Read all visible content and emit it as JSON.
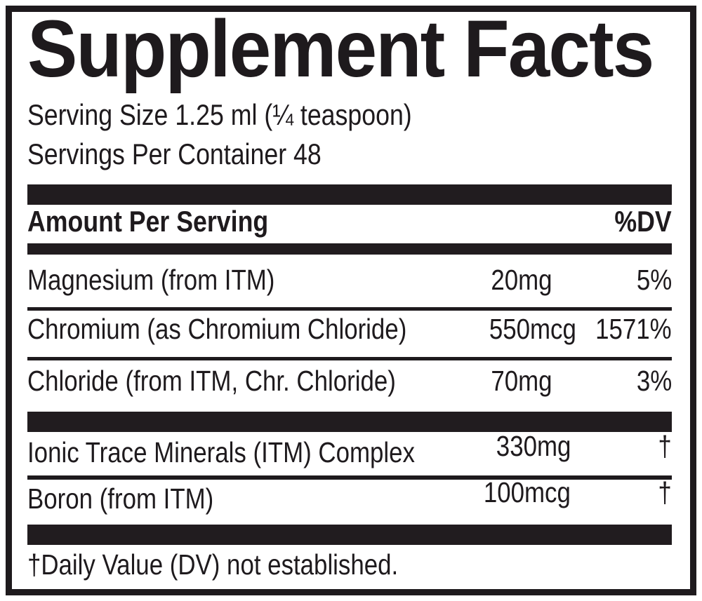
{
  "label": {
    "title": "Supplement Facts",
    "serving_size": "Serving Size 1.25 ml (¼ teaspoon)",
    "servings_per_container": "Servings Per Container 48",
    "header": {
      "amount_per_serving": "Amount Per Serving",
      "dv": "%DV"
    },
    "rows": [
      {
        "name": "Magnesium (from ITM)",
        "amount": "20mg",
        "dv": "5%"
      },
      {
        "name": "Chromium (as Chromium Chloride)",
        "amount": "550mcg",
        "dv": "1571%"
      },
      {
        "name": "Chloride (from ITM, Chr. Chloride)",
        "amount": "70mg",
        "dv": "3%"
      },
      {
        "name": "Ionic Trace Minerals (ITM) Complex",
        "amount": "330mg",
        "dv": "†"
      },
      {
        "name": "Boron (from ITM)",
        "amount": "100mcg",
        "dv": "†"
      }
    ],
    "footnote": "†Daily Value (DV) not established.",
    "colors": {
      "ink": "#1e1a1d",
      "bar": "#211c1f",
      "background": "#ffffff"
    }
  }
}
